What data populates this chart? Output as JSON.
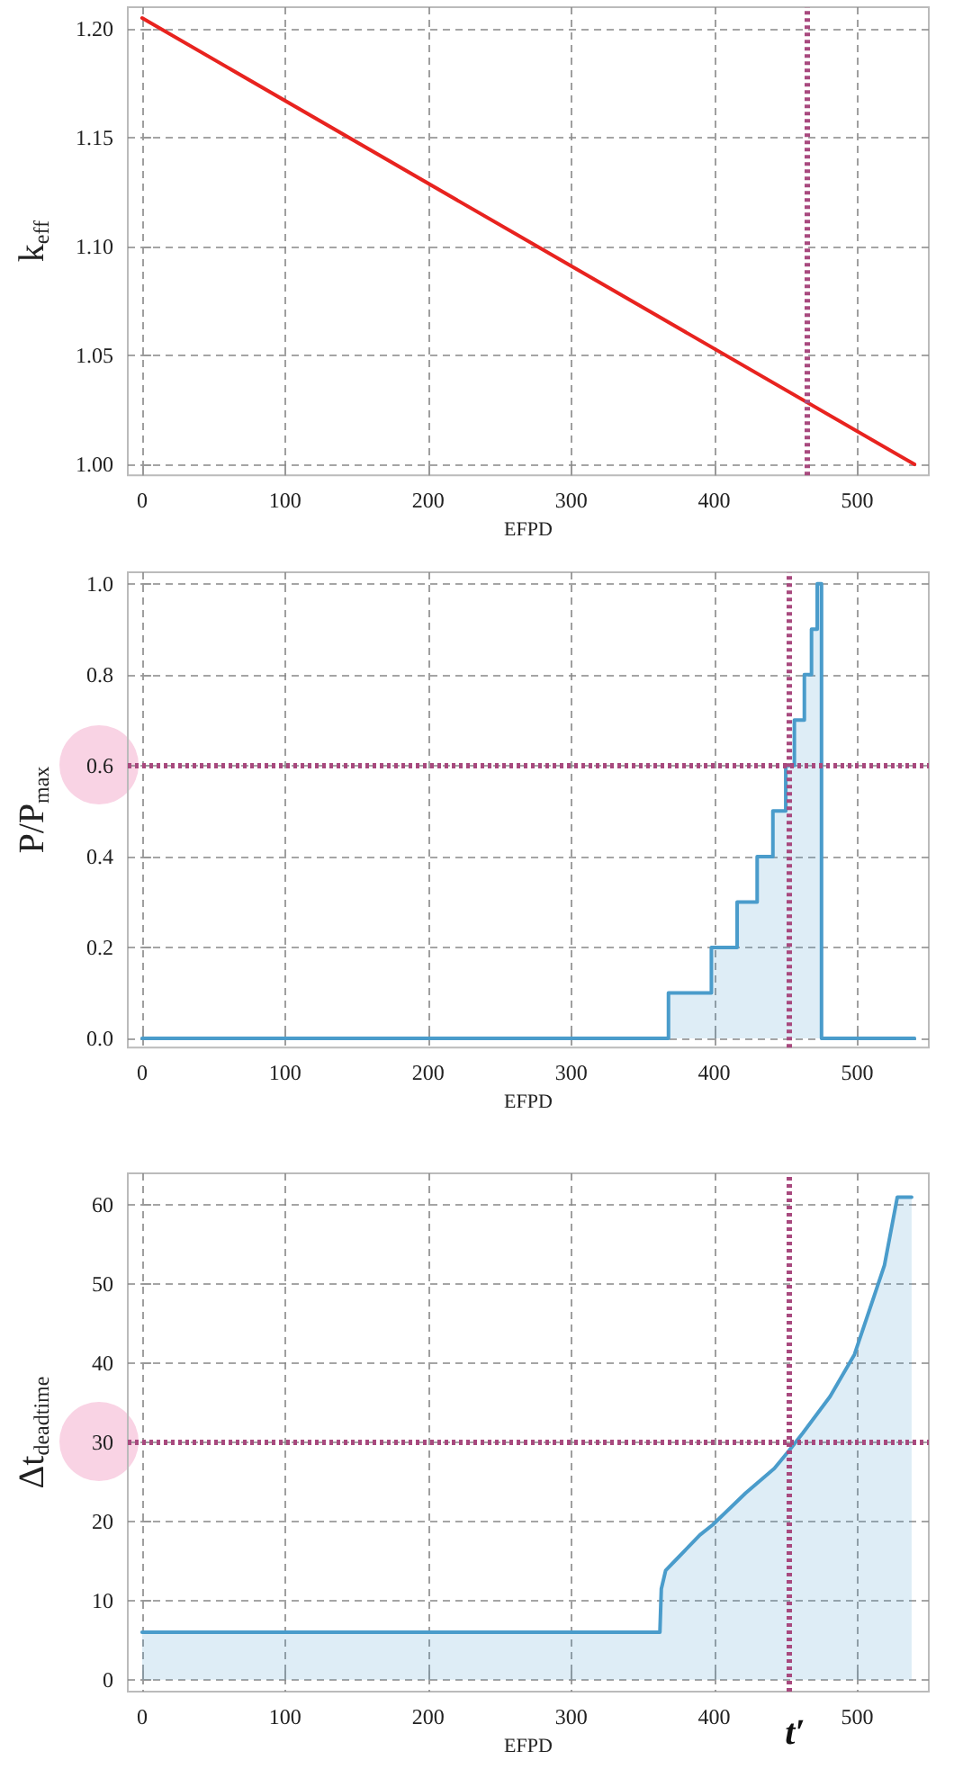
{
  "chart_data": [
    {
      "type": "line",
      "xlabel": "EFPD",
      "ylabel": "k$_{eff}$",
      "x": [
        0,
        540
      ],
      "series": [
        {
          "color": "#e8231f",
          "values": [
            1.205,
            1.0
          ]
        }
      ],
      "xlim": [
        -10,
        550
      ],
      "ylim": [
        0.995,
        1.21
      ],
      "xticks": [
        0,
        100,
        200,
        300,
        400,
        500
      ],
      "yticks": [
        {
          "value": 1.0,
          "label": "1.00"
        },
        {
          "value": 1.05,
          "label": "1.05"
        },
        {
          "value": 1.1,
          "label": "1.10"
        },
        {
          "value": 1.15,
          "label": "1.15"
        },
        {
          "value": 1.2,
          "label": "1.20"
        }
      ],
      "grid": true,
      "line_style": "solid",
      "marker": "none",
      "ref_lines": [
        {
          "axis": "x",
          "value": 465,
          "color": "#a8497e",
          "line_style": "dotted"
        }
      ]
    },
    {
      "type": "area",
      "xlabel": "EFPD",
      "ylabel": "P/P$_{max}$",
      "x": [
        0,
        368,
        368,
        398,
        398,
        416,
        416,
        430,
        430,
        441,
        441,
        450,
        450,
        456,
        456,
        463,
        463,
        468,
        468,
        472,
        472,
        475,
        475,
        540
      ],
      "series": [
        {
          "color": "#4a9ccb",
          "values": [
            0,
            0,
            0.1,
            0.1,
            0.2,
            0.2,
            0.3,
            0.3,
            0.4,
            0.4,
            0.5,
            0.5,
            0.6,
            0.6,
            0.7,
            0.7,
            0.8,
            0.8,
            0.9,
            0.9,
            1.0,
            1.0,
            0,
            0
          ]
        }
      ],
      "xlim": [
        -10,
        550
      ],
      "ylim": [
        -0.02,
        1.025
      ],
      "xticks": [
        0,
        100,
        200,
        300,
        400,
        500
      ],
      "yticks": [
        {
          "value": 0,
          "label": "0.0"
        },
        {
          "value": 0.2,
          "label": "0.2"
        },
        {
          "value": 0.4,
          "label": "0.4"
        },
        {
          "value": 0.6,
          "label": "0.6"
        },
        {
          "value": 0.8,
          "label": "0.8"
        },
        {
          "value": 1.0,
          "label": "1.0"
        }
      ],
      "grid": true,
      "line_style": "solid",
      "marker": "none",
      "ref_lines": [
        {
          "axis": "x",
          "value": 452,
          "color": "#a8497e",
          "line_style": "dotted"
        },
        {
          "axis": "y",
          "value": 0.6,
          "color": "#a8497e",
          "line_style": "dotted"
        }
      ]
    },
    {
      "type": "area",
      "xlabel": "EFPD",
      "ylabel": "Δt$_{deadtime}$",
      "x": [
        0,
        362,
        363,
        366,
        374,
        390,
        399,
        422,
        442,
        452,
        462,
        481,
        498,
        512,
        519,
        528,
        538
      ],
      "series": [
        {
          "color": "#4a9ccb",
          "values": [
            6,
            6,
            11.5,
            13.8,
            15.3,
            18.3,
            19.6,
            23.6,
            26.7,
            28.9,
            31.2,
            35.8,
            41.1,
            48.6,
            52.4,
            61,
            61
          ]
        }
      ],
      "xlim": [
        -10,
        550
      ],
      "ylim": [
        -1.5,
        64
      ],
      "xticks": [
        0,
        100,
        200,
        300,
        400,
        500
      ],
      "yticks": [
        0,
        10,
        20,
        30,
        40,
        50,
        60
      ],
      "grid": true,
      "line_style": "solid",
      "marker": "none",
      "ref_lines": [
        {
          "axis": "x",
          "value": 452,
          "color": "#a8497e",
          "line_style": "dotted"
        },
        {
          "axis": "y",
          "value": 30,
          "color": "#a8497e",
          "line_style": "dotted"
        }
      ],
      "annotations": [
        "t′"
      ]
    }
  ]
}
